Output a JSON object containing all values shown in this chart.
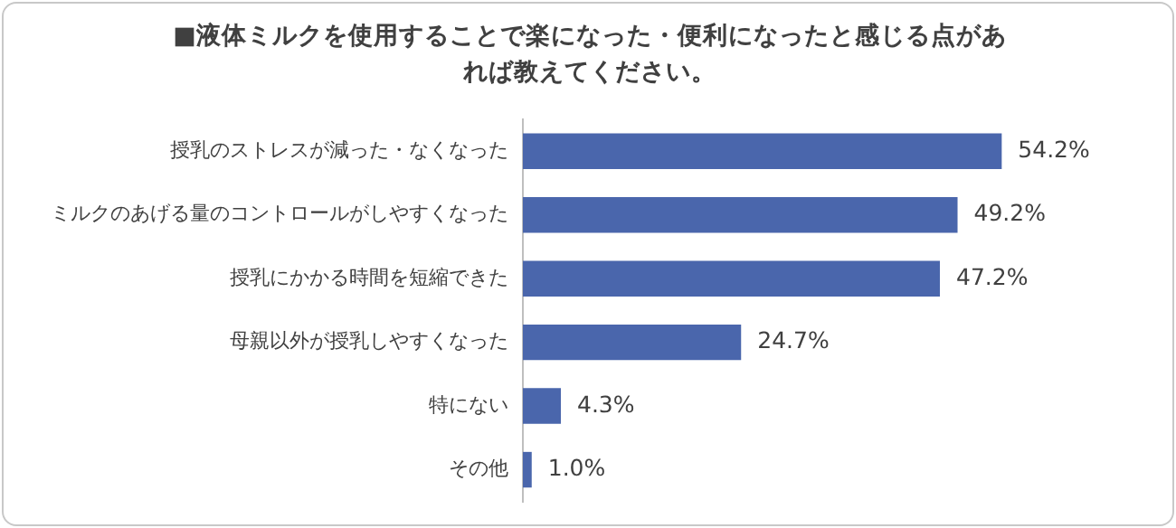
{
  "chart_data": {
    "type": "bar",
    "orientation": "horizontal",
    "title": "■液体ミルクを使用することで楽になった・便利になったと感じる点があれば教えてください。",
    "categories": [
      "授乳のストレスが減った・なくなった",
      "ミルクのあげる量のコントロールがしやすくなった",
      "授乳にかかる時間を短縮できた",
      "母親以外が授乳しやすくなった",
      "特にない",
      "その他"
    ],
    "values": [
      54.2,
      49.2,
      47.2,
      24.7,
      4.3,
      1.0
    ],
    "value_labels": [
      "54.2%",
      "49.2%",
      "47.2%",
      "24.7%",
      "4.3%",
      "1.0%"
    ],
    "color": "#4a66ac",
    "grid": false,
    "legend": false,
    "tick_labels": "y"
  }
}
